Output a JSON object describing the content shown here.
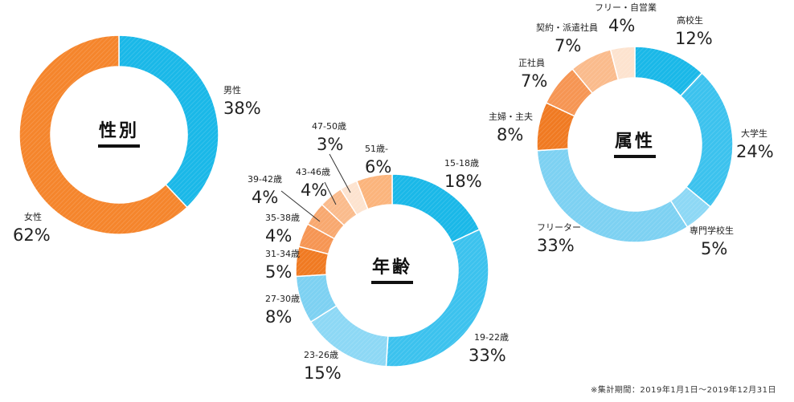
{
  "chart_data": [
    {
      "type": "pie",
      "title": "性別",
      "segments": [
        {
          "label": "男性",
          "value": 38,
          "display": "38%",
          "color": "#1ab8e8"
        },
        {
          "label": "女性",
          "value": 62,
          "display": "62%",
          "color": "#f5852c"
        }
      ]
    },
    {
      "type": "pie",
      "title": "年齢",
      "segments": [
        {
          "label": "15-18歳",
          "value": 18,
          "display": "18%",
          "color": "#1ab8e8"
        },
        {
          "label": "19-22歳",
          "value": 33,
          "display": "33%",
          "color": "#3cc2ee"
        },
        {
          "label": "23-26歳",
          "value": 15,
          "display": "15%",
          "color": "#8dd8f5"
        },
        {
          "label": "27-30歳",
          "value": 8,
          "display": "8%",
          "color": "#7dd1f2"
        },
        {
          "label": "31-34歳",
          "value": 5,
          "display": "5%",
          "color": "#f07a22"
        },
        {
          "label": "35-38歳",
          "value": 4,
          "display": "4%",
          "color": "#f69553"
        },
        {
          "label": "39-42歳",
          "value": 4,
          "display": "4%",
          "color": "#f8a86f"
        },
        {
          "label": "43-46歳",
          "value": 4,
          "display": "4%",
          "color": "#fabb8c"
        },
        {
          "label": "47-50歳",
          "value": 3,
          "display": "3%",
          "color": "#fde3cf"
        },
        {
          "label": "51歳-",
          "value": 6,
          "display": "6%",
          "color": "#fbb47c"
        }
      ]
    },
    {
      "type": "pie",
      "title": "属性",
      "segments": [
        {
          "label": "高校生",
          "value": 12,
          "display": "12%",
          "color": "#1ab8e8"
        },
        {
          "label": "大学生",
          "value": 24,
          "display": "24%",
          "color": "#3cc2ee"
        },
        {
          "label": "専門学校生",
          "value": 5,
          "display": "5%",
          "color": "#8dd8f5"
        },
        {
          "label": "フリーター",
          "value": 33,
          "display": "33%",
          "color": "#7dd1f2"
        },
        {
          "label": "主婦・主夫",
          "value": 8,
          "display": "8%",
          "color": "#f07a22"
        },
        {
          "label": "正社員",
          "value": 7,
          "display": "7%",
          "color": "#f69553"
        },
        {
          "label": "契約・派遣社員",
          "value": 7,
          "display": "7%",
          "color": "#fabb8c"
        },
        {
          "label": "フリー・自営業",
          "value": 4,
          "display": "4%",
          "color": "#fde3cf"
        }
      ]
    }
  ],
  "footnote": "※集計期間：2019年1月1日～2019年12月31日"
}
